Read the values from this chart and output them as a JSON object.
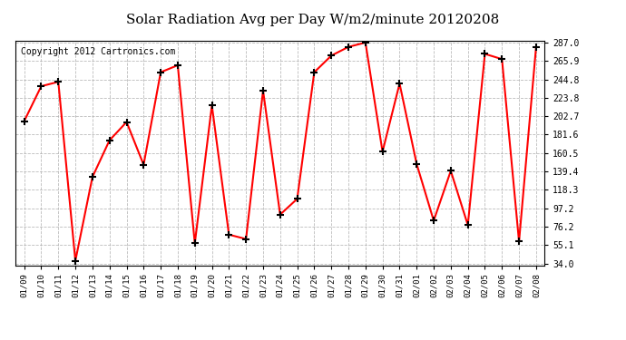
{
  "title": "Solar Radiation Avg per Day W/m2/minute 20120208",
  "copyright": "Copyright 2012 Cartronics.com",
  "x_labels": [
    "01/09",
    "01/10",
    "01/11",
    "01/12",
    "01/13",
    "01/14",
    "01/15",
    "01/16",
    "01/17",
    "01/18",
    "01/19",
    "01/20",
    "01/21",
    "01/22",
    "01/23",
    "01/24",
    "01/25",
    "01/26",
    "01/27",
    "01/28",
    "01/29",
    "01/30",
    "01/31",
    "02/01",
    "02/02",
    "02/03",
    "02/04",
    "02/05",
    "02/06",
    "02/07",
    "02/08"
  ],
  "y_values": [
    197,
    237,
    242,
    37,
    133,
    175,
    196,
    147,
    253,
    261,
    57,
    215,
    67,
    62,
    232,
    90,
    108,
    253,
    272,
    282,
    287,
    162,
    240,
    148,
    83,
    140,
    78,
    274,
    268,
    59,
    282
  ],
  "y_ticks": [
    34.0,
    55.1,
    76.2,
    97.2,
    118.3,
    139.4,
    160.5,
    181.6,
    202.7,
    223.8,
    244.8,
    265.9,
    287.0
  ],
  "y_min": 34.0,
  "y_max": 287.0,
  "line_color": "red",
  "marker": "+",
  "marker_color": "black",
  "bg_color": "#ffffff",
  "plot_bg_color": "#ffffff",
  "grid_color": "#aaaaaa",
  "title_fontsize": 11,
  "copyright_fontsize": 7
}
